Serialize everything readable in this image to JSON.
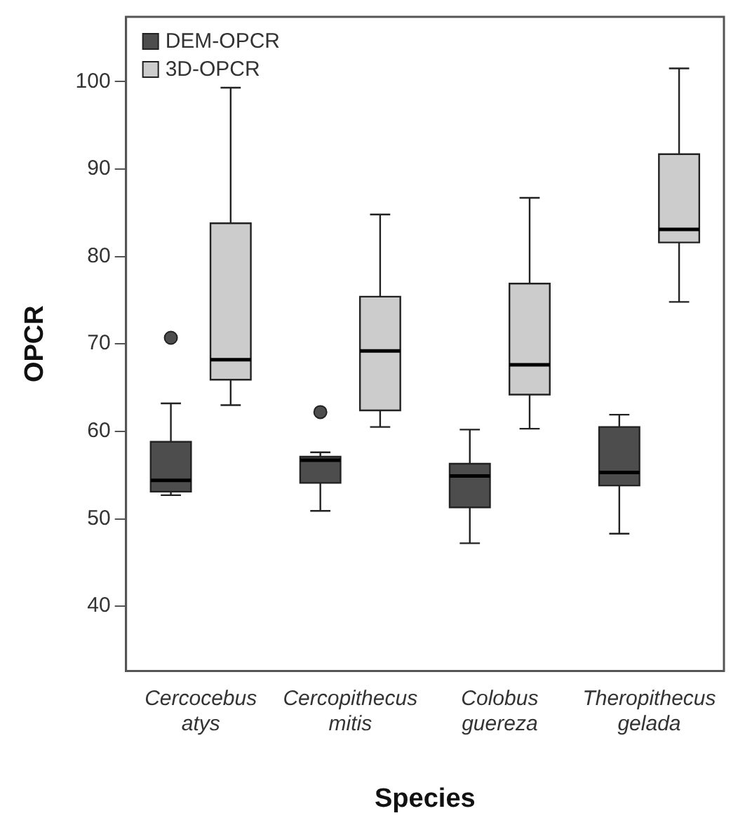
{
  "chart_data": {
    "type": "box",
    "xlabel": "Species",
    "ylabel": "OPCR",
    "categories": [
      "Cercocebus atys",
      "Cercopithecus mitis",
      "Colobus guereza",
      "Theropithecus gelada"
    ],
    "ylim": [
      32.6,
      107.4
    ],
    "yticks": [
      40,
      50,
      60,
      70,
      80,
      90,
      100
    ],
    "legend": "top left",
    "grid": false,
    "series": [
      {
        "name": "DEM-OPCR",
        "color": "#4d4d4d",
        "boxes": [
          {
            "low": 52.7,
            "q1": 53.1,
            "median": 54.4,
            "q3": 58.8,
            "high": 63.2,
            "outliers": [
              70.7
            ]
          },
          {
            "low": 50.9,
            "q1": 54.1,
            "median": 56.7,
            "q3": 57.1,
            "high": 57.6,
            "outliers": [
              62.2
            ]
          },
          {
            "low": 47.2,
            "q1": 51.3,
            "median": 54.9,
            "q3": 56.3,
            "high": 60.2
          },
          {
            "low": 48.3,
            "q1": 53.8,
            "median": 55.3,
            "q3": 60.5,
            "high": 61.9
          }
        ]
      },
      {
        "name": "3D-OPCR",
        "color": "#cccccc",
        "boxes": [
          {
            "low": 63.0,
            "q1": 65.9,
            "median": 68.2,
            "q3": 83.8,
            "high": 99.3
          },
          {
            "low": 60.5,
            "q1": 62.4,
            "median": 69.2,
            "q3": 75.4,
            "high": 84.8
          },
          {
            "low": 60.3,
            "q1": 64.2,
            "median": 67.6,
            "q3": 76.9,
            "high": 86.7
          },
          {
            "low": 74.8,
            "q1": 81.6,
            "median": 83.1,
            "q3": 91.7,
            "high": 101.5
          }
        ]
      }
    ]
  }
}
